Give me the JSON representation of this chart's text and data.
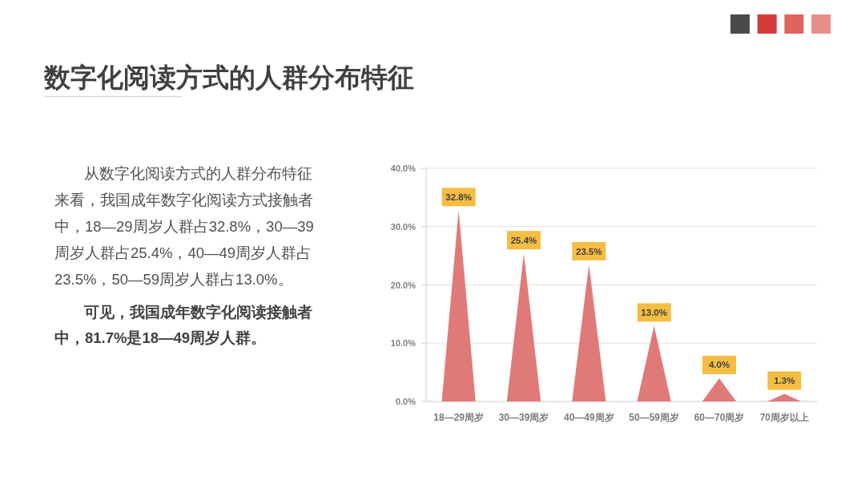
{
  "chart_data": {
    "type": "bar",
    "title": "数字化阅读方式的人群分布特征",
    "annotations": [
      "从数字化阅读方式的人群分布特征来看，我国成年数字化阅读方式接触者中，18—29周岁人群占32.8%，30—39周岁人群占25.4%，40—49周岁人群占23.5%，50—59周岁人群占13.0%。",
      "可见，我国成年数字化阅读接触者中，81.7%是18—49周岁人群。"
    ],
    "categories": [
      "18—29周岁",
      "30—39周岁",
      "40—49周岁",
      "50—59周岁",
      "60—70周岁",
      "70周岁以上"
    ],
    "values": [
      32.8,
      25.4,
      23.5,
      13.0,
      4.0,
      1.3
    ],
    "value_labels": [
      "32.8%",
      "25.4%",
      "23.5%",
      "13.0%",
      "4.0%",
      "1.3%"
    ],
    "color": "#e07a78",
    "ylim": [
      0,
      40
    ],
    "yticks": [
      {
        "value": 0,
        "label": "0.0%"
      },
      {
        "value": 10,
        "label": "10.0%"
      },
      {
        "value": 20,
        "label": "20.0%"
      },
      {
        "value": 30,
        "label": "30.0%"
      },
      {
        "value": 40,
        "label": "40.0%"
      }
    ],
    "grid": "y"
  }
}
